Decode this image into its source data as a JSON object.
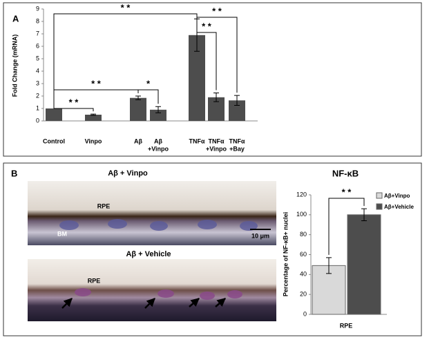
{
  "panel_labels": [
    "A",
    "B"
  ],
  "micrographs": [
    {
      "title": "Aβ + Vinpo",
      "labels": [
        "RPE",
        "BM"
      ],
      "scale_bar": "10 μm"
    },
    {
      "title": "Aβ + Vehicle",
      "labels": [
        "RPE"
      ]
    }
  ],
  "chart_data": [
    {
      "type": "bar",
      "ylabel": "Fold Change (mRNA)",
      "categories": [
        [
          "Control"
        ],
        [
          "Vinpo"
        ],
        [
          "Aβ"
        ],
        [
          "Aβ",
          "+Vinpo"
        ],
        [
          "TNFα"
        ],
        [
          "TNFα",
          "+Vinpo"
        ],
        [
          "TNFα",
          "+Bay"
        ]
      ],
      "values": [
        1,
        0.5,
        1.85,
        0.9,
        6.9,
        1.9,
        1.65
      ],
      "errors": [
        0,
        0.05,
        0.15,
        0.25,
        1.3,
        0.35,
        0.4
      ],
      "color": "#4d4d4d",
      "ylim": [
        0,
        9
      ],
      "yticks": [
        0,
        1,
        2,
        3,
        4,
        5,
        6,
        7,
        8,
        9
      ],
      "annotations": [
        {
          "label": "* *",
          "between": [
            0,
            4
          ]
        },
        {
          "label": "* *",
          "between": [
            0,
            1
          ]
        },
        {
          "label": "* *",
          "between": [
            0,
            2
          ]
        },
        {
          "label": "*",
          "between": [
            2,
            3
          ]
        },
        {
          "label": "* *",
          "between": [
            4,
            5
          ]
        },
        {
          "label": "* *",
          "between": [
            4,
            6
          ]
        }
      ]
    },
    {
      "type": "grouped-bar",
      "title": "NF-κB",
      "ylabel": "Percentage of NF-κB+ nuclei",
      "categories": [
        "RPE"
      ],
      "series": [
        {
          "name": "Aβ+Vinpo",
          "color": "#d9d9d9",
          "values": [
            49
          ],
          "errors": [
            8
          ]
        },
        {
          "name": "Aβ+Vehicle",
          "color": "#4d4d4d",
          "values": [
            100
          ],
          "errors": [
            6
          ]
        }
      ],
      "ylim": [
        0,
        120
      ],
      "yticks": [
        0,
        20,
        40,
        60,
        80,
        100,
        120
      ],
      "legend": "right",
      "annotations": [
        {
          "label": "* *",
          "between": [
            0,
            1
          ]
        }
      ]
    }
  ]
}
